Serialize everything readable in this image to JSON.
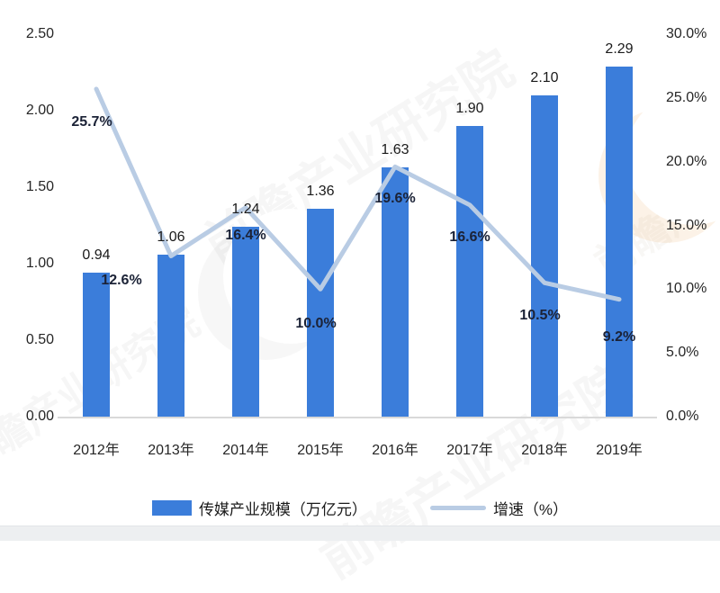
{
  "chart_data": {
    "type": "bar+line combo",
    "categories": [
      "2012年",
      "2013年",
      "2014年",
      "2015年",
      "2016年",
      "2017年",
      "2018年",
      "2019年"
    ],
    "series": [
      {
        "name": "传媒产业规模（万亿元）",
        "type": "bar",
        "axis": "left",
        "color": "#3B7DDA",
        "values": [
          0.94,
          1.06,
          1.24,
          1.36,
          1.63,
          1.9,
          2.1,
          2.29
        ],
        "labels": [
          "0.94",
          "1.06",
          "1.24",
          "1.36",
          "1.63",
          "1.90",
          "2.10",
          "2.29"
        ]
      },
      {
        "name": "增速（%）",
        "type": "line",
        "axis": "right",
        "color": "#B9CCE4",
        "values": [
          25.7,
          12.6,
          16.4,
          10.0,
          19.6,
          16.6,
          10.5,
          9.2
        ],
        "labels": [
          "25.7%",
          "12.6%",
          "16.4%",
          "10.0%",
          "19.6%",
          "16.6%",
          "10.5%",
          "9.2%"
        ]
      }
    ],
    "left_axis": {
      "min": 0.0,
      "max": 2.5,
      "ticks": [
        "2.50",
        "2.00",
        "1.50",
        "1.00",
        "0.50",
        "0.00"
      ]
    },
    "right_axis": {
      "min": 0.0,
      "max": 30.0,
      "ticks": [
        "30.0%",
        "25.0%",
        "20.0%",
        "15.0%",
        "10.0%",
        "5.0%",
        "0.0%"
      ]
    },
    "grid": "baseline-only",
    "legend_position": "bottom",
    "title": ""
  },
  "legend": {
    "bar_label": "传媒产业规模（万亿元）",
    "line_label": "增速（%）"
  },
  "watermark": {
    "text": "前瞻产业研究院"
  }
}
